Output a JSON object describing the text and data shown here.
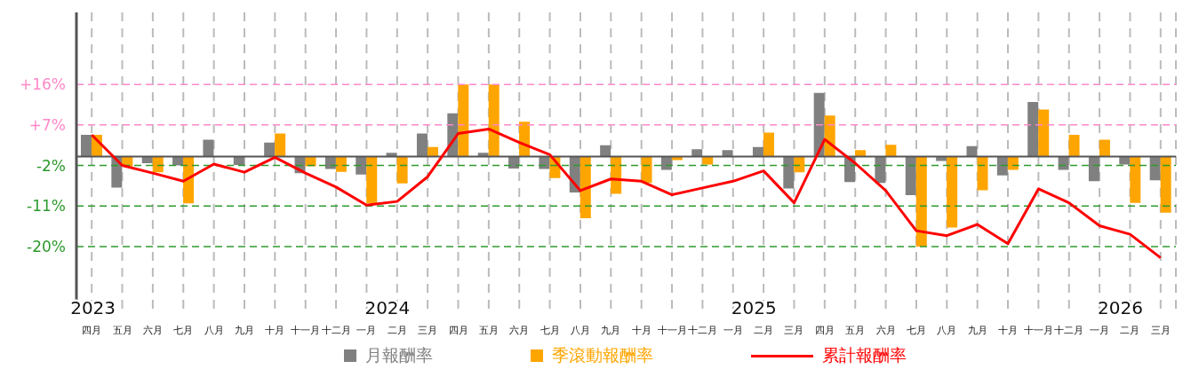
{
  "chart_data": {
    "type": "bar",
    "categories": [
      "四月",
      "五月",
      "六月",
      "七月",
      "八月",
      "九月",
      "十月",
      "十一月",
      "十二月",
      "一月",
      "二月",
      "三月",
      "四月",
      "五月",
      "六月",
      "七月",
      "八月",
      "九月",
      "十月",
      "十一月",
      "十二月",
      "一月",
      "二月",
      "三月",
      "四月",
      "五月",
      "六月",
      "七月",
      "八月",
      "九月",
      "十月",
      "十一月",
      "十二月",
      "一月",
      "二月",
      "三月"
    ],
    "series": [
      {
        "name": "月報酬率",
        "type": "bar",
        "color": "#808080",
        "values": [
          4.8,
          -6.9,
          -1.5,
          -2.0,
          3.7,
          -1.9,
          3.1,
          -3.7,
          -2.8,
          -4.0,
          0.8,
          5.1,
          9.6,
          0.8,
          -2.7,
          -2.8,
          -8.0,
          2.5,
          null,
          -3.0,
          1.6,
          1.4,
          2.1,
          -7.1,
          14.1,
          -5.7,
          -5.9,
          -8.6,
          -1.0,
          2.3,
          -4.2,
          12.1,
          -3.0,
          -5.5,
          -1.8,
          -5.3
        ]
      },
      {
        "name": "季滾動報酬率",
        "type": "bar",
        "color": "#ffa500",
        "values": [
          4.8,
          -2.2,
          -3.5,
          -10.4,
          null,
          0,
          5.1,
          -2.2,
          -3.4,
          -10.4,
          -6.0,
          2.1,
          16,
          16,
          7.7,
          -4.8,
          -13.7,
          -8.3,
          -5.9,
          -0.8,
          -1.8,
          null,
          5.3,
          -3.5,
          9.1,
          1.4,
          2.6,
          -20,
          -15.8,
          -7.5,
          -3.0,
          10.4,
          4.8,
          3.7,
          -10.3,
          -12.5
        ]
      },
      {
        "name": "累計報酬率",
        "type": "line",
        "color": "#ff0000",
        "values": [
          4.8,
          -2.0,
          -3.7,
          -5.5,
          -1.7,
          -3.5,
          -0.2,
          -3.7,
          -6.8,
          -10.8,
          -10.0,
          -4.5,
          5.1,
          6.1,
          3.1,
          0.4,
          -7.6,
          -5.0,
          -5.5,
          -8.5,
          -7.0,
          -5.5,
          -3.2,
          -10.3,
          3.8,
          -1.5,
          -7.6,
          -16.5,
          -17.6,
          -15.1,
          -19.4,
          -7.2,
          -10.3,
          -15.4,
          -17.3,
          -22.5
        ]
      }
    ],
    "ylim": [
      -35,
      32
    ],
    "yticks": [
      {
        "value": 16,
        "label": "+16%"
      },
      {
        "value": 7,
        "label": "+7%"
      },
      {
        "value": -2,
        "label": "-2%"
      },
      {
        "value": -11,
        "label": "-11%"
      },
      {
        "value": -20,
        "label": "-20%"
      }
    ],
    "ref_lines": [
      {
        "axis": "y",
        "value": 16,
        "color": "#ff88c8",
        "line_style": "dashed"
      },
      {
        "axis": "y",
        "value": 7,
        "color": "#ff88c8",
        "line_style": "dashed"
      },
      {
        "axis": "y",
        "value": -2,
        "color": "#2e9a2e",
        "line_style": "dashed"
      },
      {
        "axis": "y",
        "value": -11,
        "color": "#2e9a2e",
        "line_style": "dashed"
      },
      {
        "axis": "y",
        "value": -20,
        "color": "#2e9a2e",
        "line_style": "dashed"
      },
      {
        "axis": "y",
        "value": 0,
        "color": "#555555",
        "line_style": "solid"
      }
    ],
    "annotations": [
      "2023",
      "2024",
      "2025",
      "2026"
    ],
    "grid": "x",
    "legend": "bottom",
    "marker": "none",
    "line_style": "solid"
  }
}
